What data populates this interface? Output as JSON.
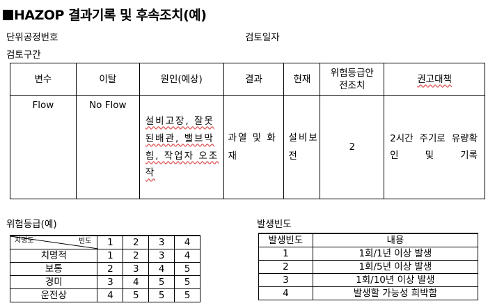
{
  "title": "HAZOP 결과기록 및 후속조치(예)",
  "meta": {
    "unit_no_label": "단위공정번호",
    "review_date_label": "검토일자",
    "section_label": "검토구간"
  },
  "main_table": {
    "headers": [
      "변수",
      "이탈",
      "원인(예상)",
      "결과",
      "현재",
      "위험등급안\n전조치",
      "권고대책"
    ],
    "row": {
      "variable": "Flow",
      "deviation": "No Flow",
      "cause": "설비고장, 잘못된배관, 밸브막힘, 작업자 오조작",
      "result": "과열 및 화재",
      "current": "설비보전",
      "risk_grade": "2",
      "recommendation": "2시간 주기로 유량확인 및 기록"
    }
  },
  "risk_table": {
    "label": "위험등급(예)",
    "corner_left": "치명도",
    "corner_right": "빈도",
    "freq_headers": [
      "1",
      "2",
      "3",
      "4"
    ],
    "rows": [
      {
        "severity": "치명적",
        "values": [
          "1",
          "2",
          "3",
          "4"
        ]
      },
      {
        "severity": "보통",
        "values": [
          "2",
          "3",
          "4",
          "5"
        ]
      },
      {
        "severity": "경미",
        "values": [
          "3",
          "4",
          "5",
          "5"
        ]
      },
      {
        "severity": "운전상",
        "values": [
          "4",
          "5",
          "5",
          "5"
        ]
      }
    ]
  },
  "freq_table": {
    "label": "발생빈도",
    "headers": [
      "발생빈도",
      "내용"
    ],
    "rows": [
      {
        "freq": "1",
        "content": "1회/1년 이상 발생"
      },
      {
        "freq": "2",
        "content": "1회/5년 이상 발생"
      },
      {
        "freq": "3",
        "content": "1회/10년 이상 발생"
      },
      {
        "freq": "4",
        "content": "발생할 가능성 희박함"
      }
    ]
  }
}
